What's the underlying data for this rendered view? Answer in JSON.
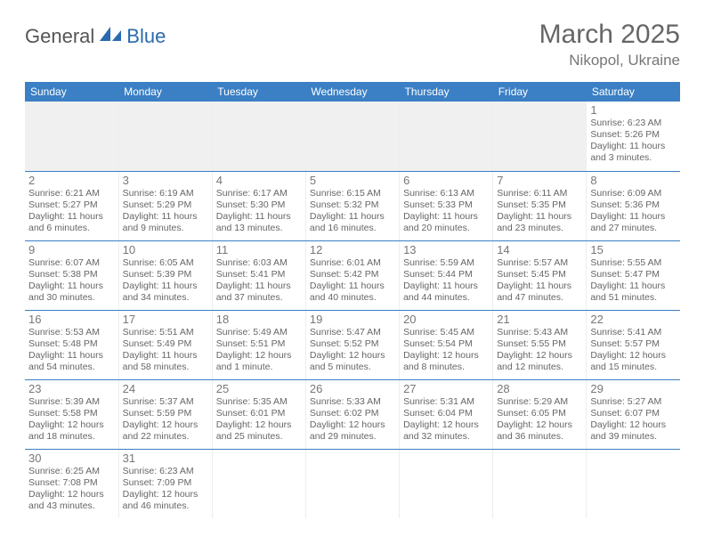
{
  "brand": {
    "part1": "General",
    "part2": "Blue"
  },
  "title": "March 2025",
  "location": "Nikopol, Ukraine",
  "colors": {
    "header_bg": "#3b7fc4",
    "header_text": "#ffffff",
    "rule": "#3b7fc4",
    "text": "#666666",
    "bg": "#ffffff",
    "blank": "#f0f0f0"
  },
  "day_headers": [
    "Sunday",
    "Monday",
    "Tuesday",
    "Wednesday",
    "Thursday",
    "Friday",
    "Saturday"
  ],
  "weeks": [
    [
      null,
      null,
      null,
      null,
      null,
      null,
      {
        "n": "1",
        "sr": "Sunrise: 6:23 AM",
        "ss": "Sunset: 5:26 PM",
        "dl": "Daylight: 11 hours and 3 minutes."
      }
    ],
    [
      {
        "n": "2",
        "sr": "Sunrise: 6:21 AM",
        "ss": "Sunset: 5:27 PM",
        "dl": "Daylight: 11 hours and 6 minutes."
      },
      {
        "n": "3",
        "sr": "Sunrise: 6:19 AM",
        "ss": "Sunset: 5:29 PM",
        "dl": "Daylight: 11 hours and 9 minutes."
      },
      {
        "n": "4",
        "sr": "Sunrise: 6:17 AM",
        "ss": "Sunset: 5:30 PM",
        "dl": "Daylight: 11 hours and 13 minutes."
      },
      {
        "n": "5",
        "sr": "Sunrise: 6:15 AM",
        "ss": "Sunset: 5:32 PM",
        "dl": "Daylight: 11 hours and 16 minutes."
      },
      {
        "n": "6",
        "sr": "Sunrise: 6:13 AM",
        "ss": "Sunset: 5:33 PM",
        "dl": "Daylight: 11 hours and 20 minutes."
      },
      {
        "n": "7",
        "sr": "Sunrise: 6:11 AM",
        "ss": "Sunset: 5:35 PM",
        "dl": "Daylight: 11 hours and 23 minutes."
      },
      {
        "n": "8",
        "sr": "Sunrise: 6:09 AM",
        "ss": "Sunset: 5:36 PM",
        "dl": "Daylight: 11 hours and 27 minutes."
      }
    ],
    [
      {
        "n": "9",
        "sr": "Sunrise: 6:07 AM",
        "ss": "Sunset: 5:38 PM",
        "dl": "Daylight: 11 hours and 30 minutes."
      },
      {
        "n": "10",
        "sr": "Sunrise: 6:05 AM",
        "ss": "Sunset: 5:39 PM",
        "dl": "Daylight: 11 hours and 34 minutes."
      },
      {
        "n": "11",
        "sr": "Sunrise: 6:03 AM",
        "ss": "Sunset: 5:41 PM",
        "dl": "Daylight: 11 hours and 37 minutes."
      },
      {
        "n": "12",
        "sr": "Sunrise: 6:01 AM",
        "ss": "Sunset: 5:42 PM",
        "dl": "Daylight: 11 hours and 40 minutes."
      },
      {
        "n": "13",
        "sr": "Sunrise: 5:59 AM",
        "ss": "Sunset: 5:44 PM",
        "dl": "Daylight: 11 hours and 44 minutes."
      },
      {
        "n": "14",
        "sr": "Sunrise: 5:57 AM",
        "ss": "Sunset: 5:45 PM",
        "dl": "Daylight: 11 hours and 47 minutes."
      },
      {
        "n": "15",
        "sr": "Sunrise: 5:55 AM",
        "ss": "Sunset: 5:47 PM",
        "dl": "Daylight: 11 hours and 51 minutes."
      }
    ],
    [
      {
        "n": "16",
        "sr": "Sunrise: 5:53 AM",
        "ss": "Sunset: 5:48 PM",
        "dl": "Daylight: 11 hours and 54 minutes."
      },
      {
        "n": "17",
        "sr": "Sunrise: 5:51 AM",
        "ss": "Sunset: 5:49 PM",
        "dl": "Daylight: 11 hours and 58 minutes."
      },
      {
        "n": "18",
        "sr": "Sunrise: 5:49 AM",
        "ss": "Sunset: 5:51 PM",
        "dl": "Daylight: 12 hours and 1 minute."
      },
      {
        "n": "19",
        "sr": "Sunrise: 5:47 AM",
        "ss": "Sunset: 5:52 PM",
        "dl": "Daylight: 12 hours and 5 minutes."
      },
      {
        "n": "20",
        "sr": "Sunrise: 5:45 AM",
        "ss": "Sunset: 5:54 PM",
        "dl": "Daylight: 12 hours and 8 minutes."
      },
      {
        "n": "21",
        "sr": "Sunrise: 5:43 AM",
        "ss": "Sunset: 5:55 PM",
        "dl": "Daylight: 12 hours and 12 minutes."
      },
      {
        "n": "22",
        "sr": "Sunrise: 5:41 AM",
        "ss": "Sunset: 5:57 PM",
        "dl": "Daylight: 12 hours and 15 minutes."
      }
    ],
    [
      {
        "n": "23",
        "sr": "Sunrise: 5:39 AM",
        "ss": "Sunset: 5:58 PM",
        "dl": "Daylight: 12 hours and 18 minutes."
      },
      {
        "n": "24",
        "sr": "Sunrise: 5:37 AM",
        "ss": "Sunset: 5:59 PM",
        "dl": "Daylight: 12 hours and 22 minutes."
      },
      {
        "n": "25",
        "sr": "Sunrise: 5:35 AM",
        "ss": "Sunset: 6:01 PM",
        "dl": "Daylight: 12 hours and 25 minutes."
      },
      {
        "n": "26",
        "sr": "Sunrise: 5:33 AM",
        "ss": "Sunset: 6:02 PM",
        "dl": "Daylight: 12 hours and 29 minutes."
      },
      {
        "n": "27",
        "sr": "Sunrise: 5:31 AM",
        "ss": "Sunset: 6:04 PM",
        "dl": "Daylight: 12 hours and 32 minutes."
      },
      {
        "n": "28",
        "sr": "Sunrise: 5:29 AM",
        "ss": "Sunset: 6:05 PM",
        "dl": "Daylight: 12 hours and 36 minutes."
      },
      {
        "n": "29",
        "sr": "Sunrise: 5:27 AM",
        "ss": "Sunset: 6:07 PM",
        "dl": "Daylight: 12 hours and 39 minutes."
      }
    ],
    [
      {
        "n": "30",
        "sr": "Sunrise: 6:25 AM",
        "ss": "Sunset: 7:08 PM",
        "dl": "Daylight: 12 hours and 43 minutes."
      },
      {
        "n": "31",
        "sr": "Sunrise: 6:23 AM",
        "ss": "Sunset: 7:09 PM",
        "dl": "Daylight: 12 hours and 46 minutes."
      },
      null,
      null,
      null,
      null,
      null
    ]
  ]
}
